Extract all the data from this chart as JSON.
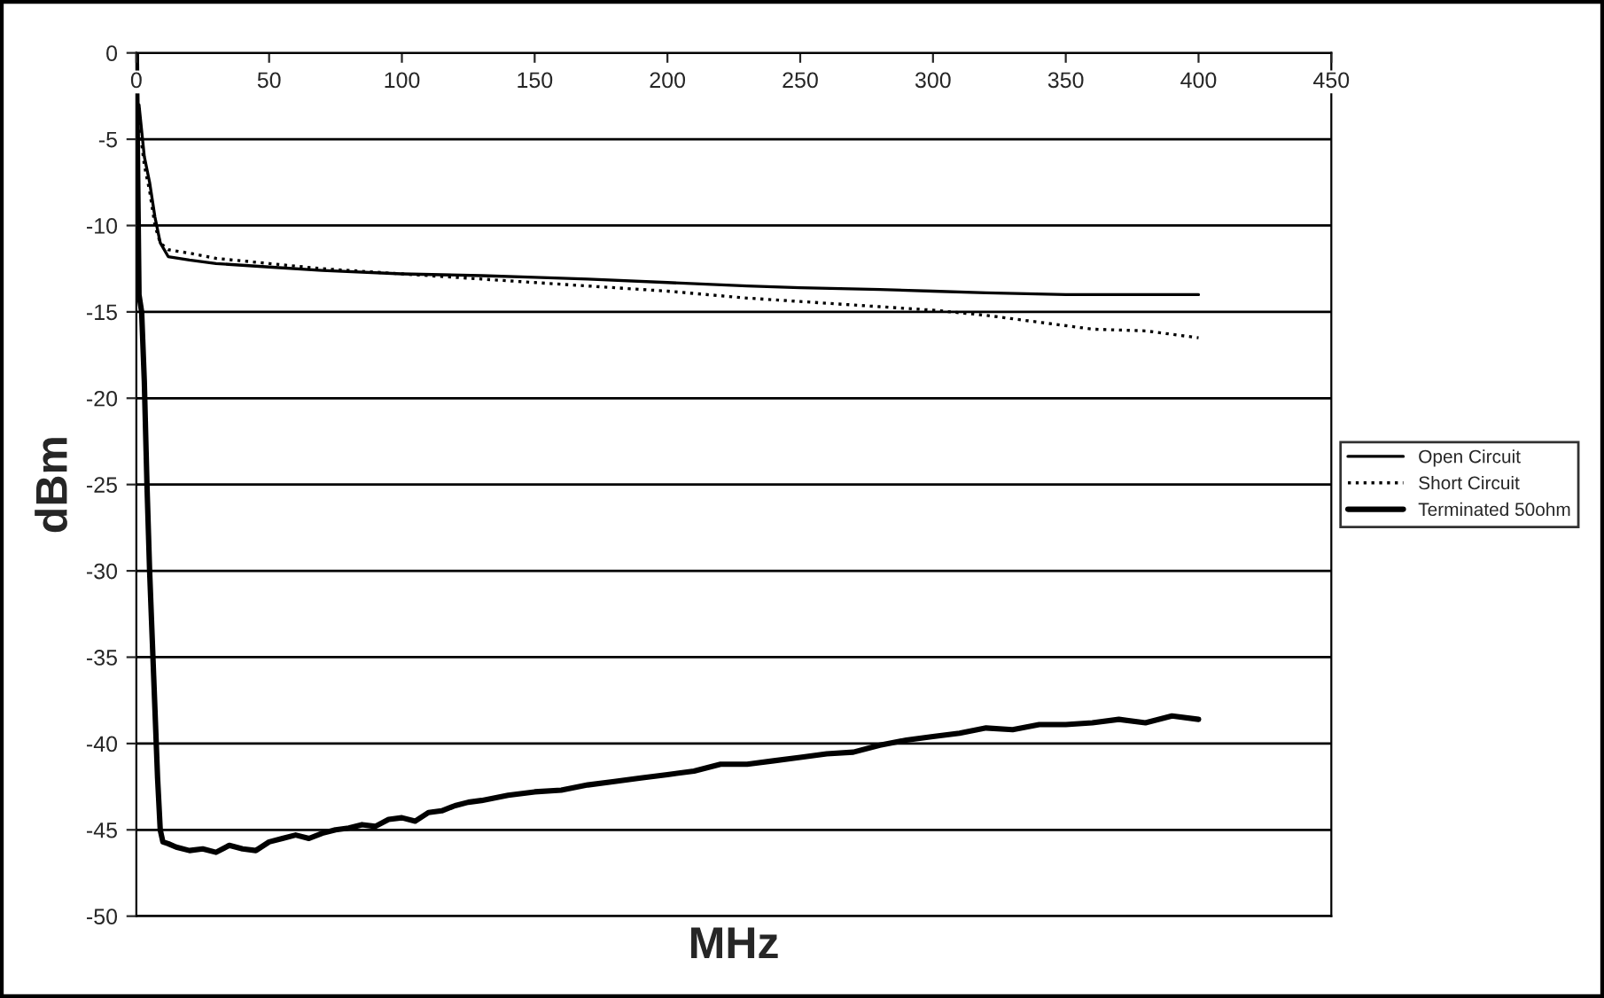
{
  "chart_data": {
    "type": "line",
    "xlabel": "MHz",
    "ylabel": "dBm",
    "xlim": [
      0,
      450
    ],
    "ylim": [
      -50,
      0
    ],
    "xticks": [
      0,
      50,
      100,
      150,
      200,
      250,
      300,
      350,
      400,
      450
    ],
    "yticks": [
      -50,
      -45,
      -40,
      -35,
      -30,
      -25,
      -20,
      -15,
      -10,
      -5,
      0
    ],
    "grid": "y",
    "legend": "right",
    "series": [
      {
        "name": "Open Circuit",
        "color": "#000000",
        "line_style": "solid",
        "x": [
          1,
          3,
          5,
          7,
          9,
          12,
          20,
          30,
          50,
          70,
          100,
          130,
          150,
          170,
          200,
          230,
          250,
          280,
          300,
          320,
          350,
          380,
          400
        ],
        "values": [
          -3,
          -6,
          -7.5,
          -9.5,
          -11,
          -11.8,
          -12,
          -12.2,
          -12.4,
          -12.6,
          -12.8,
          -12.9,
          -13,
          -13.1,
          -13.3,
          -13.5,
          -13.6,
          -13.7,
          -13.8,
          -13.9,
          -14,
          -14,
          -14
        ]
      },
      {
        "name": "Short Circuit",
        "color": "#000000",
        "line_style": "dotted",
        "x": [
          1,
          3,
          5,
          7,
          9,
          12,
          20,
          30,
          50,
          70,
          100,
          130,
          150,
          170,
          200,
          230,
          250,
          280,
          300,
          320,
          340,
          360,
          380,
          400
        ],
        "values": [
          -4,
          -6.5,
          -8,
          -10,
          -11,
          -11.4,
          -11.6,
          -11.9,
          -12.2,
          -12.5,
          -12.8,
          -13.1,
          -13.3,
          -13.5,
          -13.8,
          -14.2,
          -14.4,
          -14.7,
          -14.9,
          -15.2,
          -15.6,
          -16,
          -16.1,
          -16.5
        ]
      },
      {
        "name": "Terminated 50ohm",
        "color": "#000000",
        "line_style": "solid",
        "x": [
          0,
          1,
          2,
          3,
          4,
          5,
          6,
          7,
          8,
          9,
          10,
          12,
          15,
          20,
          25,
          30,
          35,
          40,
          45,
          50,
          55,
          60,
          65,
          70,
          75,
          80,
          85,
          90,
          95,
          100,
          105,
          110,
          115,
          120,
          125,
          130,
          140,
          150,
          160,
          170,
          180,
          190,
          200,
          210,
          220,
          230,
          240,
          250,
          260,
          270,
          280,
          290,
          300,
          310,
          320,
          330,
          340,
          350,
          360,
          370,
          380,
          390,
          400
        ],
        "values": [
          0,
          -14,
          -15,
          -19,
          -25,
          -30,
          -34,
          -38,
          -42,
          -45,
          -45.7,
          -45.8,
          -46,
          -46.2,
          -46.1,
          -46.3,
          -45.9,
          -46.1,
          -46.2,
          -45.7,
          -45.5,
          -45.3,
          -45.5,
          -45.2,
          -45,
          -44.9,
          -44.7,
          -44.8,
          -44.4,
          -44.3,
          -44.5,
          -44,
          -43.9,
          -43.6,
          -43.4,
          -43.3,
          -43,
          -42.8,
          -42.7,
          -42.4,
          -42.2,
          -42,
          -41.8,
          -41.6,
          -41.2,
          -41.2,
          -41,
          -40.8,
          -40.6,
          -40.5,
          -40.1,
          -39.8,
          -39.6,
          -39.4,
          -39.1,
          -39.2,
          -38.9,
          -38.9,
          -38.8,
          -38.6,
          -38.8,
          -38.4,
          -38.6
        ]
      }
    ]
  }
}
